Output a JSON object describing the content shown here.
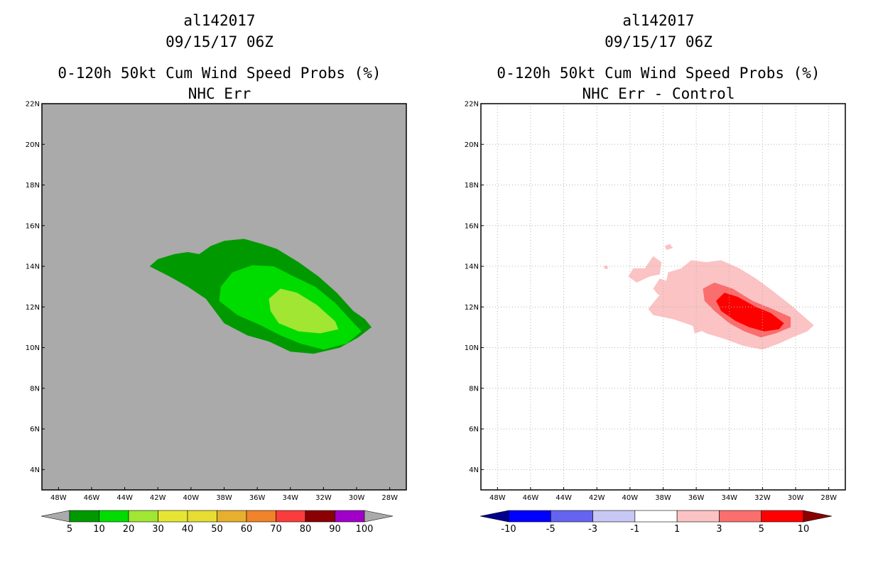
{
  "chart_data": [
    {
      "type": "heatmap",
      "storm_id": "al142017",
      "datetime": "09/15/17 06Z",
      "title": "0-120h 50kt Cum Wind Speed Probs (%)",
      "subtitle": "NHC Err",
      "background_color": "#aaaaaa",
      "grid": false,
      "x_range": [
        -49,
        -27
      ],
      "y_range": [
        3,
        22
      ],
      "xticks": [
        {
          "value": -48,
          "label": "48W"
        },
        {
          "value": -46,
          "label": "46W"
        },
        {
          "value": -44,
          "label": "44W"
        },
        {
          "value": -42,
          "label": "42W"
        },
        {
          "value": -40,
          "label": "40W"
        },
        {
          "value": -38,
          "label": "38W"
        },
        {
          "value": -36,
          "label": "36W"
        },
        {
          "value": -34,
          "label": "34W"
        },
        {
          "value": -32,
          "label": "32W"
        },
        {
          "value": -30,
          "label": "30W"
        },
        {
          "value": -28,
          "label": "28W"
        }
      ],
      "yticks": [
        {
          "value": 4,
          "label": "4N"
        },
        {
          "value": 6,
          "label": "6N"
        },
        {
          "value": 8,
          "label": "8N"
        },
        {
          "value": 10,
          "label": "10N"
        },
        {
          "value": 12,
          "label": "12N"
        },
        {
          "value": 14,
          "label": "14N"
        },
        {
          "value": 16,
          "label": "16N"
        },
        {
          "value": 18,
          "label": "18N"
        },
        {
          "value": 20,
          "label": "20N"
        },
        {
          "value": 22,
          "label": "22N"
        }
      ],
      "contours": [
        {
          "level": "5-10",
          "color": "#009a00",
          "points": [
            [
              -42.5,
              14.0
            ],
            [
              -42.0,
              14.35
            ],
            [
              -41.0,
              14.6
            ],
            [
              -40.2,
              14.7
            ],
            [
              -39.5,
              14.6
            ],
            [
              -38.8,
              15.0
            ],
            [
              -38.0,
              15.25
            ],
            [
              -36.8,
              15.35
            ],
            [
              -35.7,
              15.1
            ],
            [
              -34.8,
              14.85
            ],
            [
              -33.5,
              14.2
            ],
            [
              -32.3,
              13.5
            ],
            [
              -31.2,
              12.7
            ],
            [
              -30.2,
              11.8
            ],
            [
              -29.5,
              11.4
            ],
            [
              -29.1,
              11.0
            ],
            [
              -29.9,
              10.5
            ],
            [
              -31.0,
              10.0
            ],
            [
              -32.6,
              9.7
            ],
            [
              -34.0,
              9.8
            ],
            [
              -35.3,
              10.3
            ],
            [
              -36.6,
              10.6
            ],
            [
              -38.0,
              11.2
            ],
            [
              -39.1,
              12.4
            ],
            [
              -40.2,
              13.0
            ],
            [
              -41.3,
              13.5
            ]
          ]
        },
        {
          "level": "10-20",
          "color": "#00dc00",
          "points": [
            [
              -38.2,
              13.0
            ],
            [
              -37.5,
              13.7
            ],
            [
              -36.3,
              14.05
            ],
            [
              -35.0,
              14.0
            ],
            [
              -33.8,
              13.5
            ],
            [
              -32.5,
              13.0
            ],
            [
              -31.3,
              12.2
            ],
            [
              -30.4,
              11.4
            ],
            [
              -29.7,
              10.8
            ],
            [
              -30.6,
              10.2
            ],
            [
              -32.0,
              9.9
            ],
            [
              -33.4,
              10.2
            ],
            [
              -34.6,
              10.6
            ],
            [
              -35.8,
              11.1
            ],
            [
              -37.2,
              11.6
            ],
            [
              -38.3,
              12.3
            ]
          ]
        },
        {
          "level": "20-30",
          "color": "#a0e632",
          "points": [
            [
              -35.3,
              12.4
            ],
            [
              -34.6,
              12.9
            ],
            [
              -33.6,
              12.7
            ],
            [
              -32.4,
              12.1
            ],
            [
              -31.3,
              11.3
            ],
            [
              -31.1,
              10.9
            ],
            [
              -32.2,
              10.7
            ],
            [
              -33.5,
              10.8
            ],
            [
              -34.7,
              11.2
            ],
            [
              -35.2,
              11.8
            ]
          ]
        }
      ],
      "colorbar": {
        "levels": [
          "5",
          "10",
          "20",
          "30",
          "40",
          "50",
          "60",
          "70",
          "80",
          "90",
          "100"
        ],
        "colors": [
          "#aaaaaa",
          "#009a00",
          "#00dc00",
          "#a0e632",
          "#e6e632",
          "#e6dc32",
          "#e6af2d",
          "#f08228",
          "#fa3c3c",
          "#8b0000",
          "#a000c8",
          "#aaaaaa"
        ]
      }
    },
    {
      "type": "heatmap",
      "storm_id": "al142017",
      "datetime": "09/15/17 06Z",
      "title": "0-120h 50kt Cum Wind Speed Probs (%)",
      "subtitle": "NHC Err - Control",
      "background_color": "#ffffff",
      "grid": true,
      "x_range": [
        -49,
        -27
      ],
      "y_range": [
        3,
        22
      ],
      "xticks": [
        {
          "value": -48,
          "label": "48W"
        },
        {
          "value": -46,
          "label": "46W"
        },
        {
          "value": -44,
          "label": "44W"
        },
        {
          "value": -42,
          "label": "42W"
        },
        {
          "value": -40,
          "label": "40W"
        },
        {
          "value": -38,
          "label": "38W"
        },
        {
          "value": -36,
          "label": "36W"
        },
        {
          "value": -34,
          "label": "34W"
        },
        {
          "value": -32,
          "label": "32W"
        },
        {
          "value": -30,
          "label": "30W"
        },
        {
          "value": -28,
          "label": "28W"
        }
      ],
      "yticks": [
        {
          "value": 4,
          "label": "4N"
        },
        {
          "value": 6,
          "label": "6N"
        },
        {
          "value": 8,
          "label": "8N"
        },
        {
          "value": 10,
          "label": "10N"
        },
        {
          "value": 12,
          "label": "12N"
        },
        {
          "value": 14,
          "label": "14N"
        },
        {
          "value": 16,
          "label": "16N"
        },
        {
          "value": 18,
          "label": "18N"
        },
        {
          "value": 20,
          "label": "20N"
        },
        {
          "value": 22,
          "label": "22N"
        }
      ],
      "contours": [
        {
          "level": "1-3",
          "color": "#fbc3c3",
          "points": [
            [
              -36.9,
              13.9
            ],
            [
              -36.3,
              14.3
            ],
            [
              -35.4,
              14.2
            ],
            [
              -34.5,
              14.3
            ],
            [
              -33.4,
              13.9
            ],
            [
              -32.4,
              13.4
            ],
            [
              -31.4,
              12.8
            ],
            [
              -30.3,
              12.1
            ],
            [
              -29.6,
              11.6
            ],
            [
              -28.9,
              11.1
            ],
            [
              -29.3,
              10.8
            ],
            [
              -30.2,
              10.5
            ],
            [
              -31.0,
              10.2
            ],
            [
              -32.0,
              9.9
            ],
            [
              -33.2,
              10.1
            ],
            [
              -34.2,
              10.4
            ],
            [
              -35.4,
              10.7
            ],
            [
              -36.3,
              11.1
            ],
            [
              -37.4,
              11.4
            ],
            [
              -38.6,
              11.6
            ],
            [
              -38.9,
              11.9
            ],
            [
              -38.2,
              12.6
            ],
            [
              -37.8,
              13.3
            ],
            [
              -37.7,
              13.7
            ]
          ]
        },
        {
          "level": "1-3",
          "color": "#fbc3c3",
          "points": [
            [
              -39.1,
              13.9
            ],
            [
              -38.6,
              14.5
            ],
            [
              -38.1,
              14.2
            ],
            [
              -38.2,
              13.6
            ],
            [
              -38.8,
              13.5
            ],
            [
              -39.6,
              13.2
            ],
            [
              -40.1,
              13.5
            ],
            [
              -39.8,
              13.9
            ]
          ]
        },
        {
          "level": "1-3",
          "color": "#fbc3c3",
          "points": [
            [
              -38.6,
              12.9
            ],
            [
              -38.2,
              13.4
            ],
            [
              -37.5,
              13.2
            ],
            [
              -37.6,
              12.7
            ],
            [
              -38.3,
              12.6
            ]
          ]
        },
        {
          "level": "1-3",
          "color": "#fbc3c3",
          "points": [
            [
              -37.9,
              15.0
            ],
            [
              -37.6,
              15.1
            ],
            [
              -37.4,
              14.9
            ],
            [
              -37.8,
              14.8
            ]
          ]
        },
        {
          "level": "1-3",
          "color": "#fbc3c3",
          "points": [
            [
              -41.6,
              14.0
            ],
            [
              -41.4,
              14.05
            ],
            [
              -41.3,
              13.9
            ],
            [
              -41.5,
              13.85
            ]
          ]
        },
        {
          "level": "1-3",
          "color": "#fbc3c3",
          "points": [
            [
              -36.2,
              11.1
            ],
            [
              -35.6,
              11.1
            ],
            [
              -35.7,
              10.8
            ],
            [
              -36.1,
              10.7
            ]
          ]
        },
        {
          "level": "3-5",
          "color": "#fa6e6e",
          "points": [
            [
              -35.6,
              12.9
            ],
            [
              -34.9,
              13.2
            ],
            [
              -33.8,
              12.9
            ],
            [
              -32.6,
              12.3
            ],
            [
              -31.4,
              11.9
            ],
            [
              -30.3,
              11.5
            ],
            [
              -30.3,
              11.0
            ],
            [
              -31.2,
              10.7
            ],
            [
              -32.1,
              10.5
            ],
            [
              -33.1,
              10.8
            ],
            [
              -34.0,
              11.2
            ],
            [
              -34.9,
              11.8
            ],
            [
              -35.5,
              12.3
            ]
          ]
        },
        {
          "level": "5-10",
          "color": "#ff0000",
          "points": [
            [
              -34.8,
              12.3
            ],
            [
              -34.3,
              12.7
            ],
            [
              -33.5,
              12.5
            ],
            [
              -32.4,
              12.0
            ],
            [
              -31.5,
              11.7
            ],
            [
              -30.7,
              11.2
            ],
            [
              -31.0,
              10.9
            ],
            [
              -31.9,
              10.8
            ],
            [
              -32.8,
              11.0
            ],
            [
              -33.6,
              11.3
            ],
            [
              -34.5,
              11.8
            ]
          ]
        }
      ],
      "colorbar": {
        "levels": [
          "-10",
          "-5",
          "-3",
          "-1",
          "1",
          "3",
          "5",
          "10"
        ],
        "colors": [
          "#00008b",
          "#0000ff",
          "#6464f0",
          "#c8c8f5",
          "#ffffff",
          "#fbc3c3",
          "#fa6e6e",
          "#ff0000",
          "#8b0000"
        ]
      }
    }
  ]
}
